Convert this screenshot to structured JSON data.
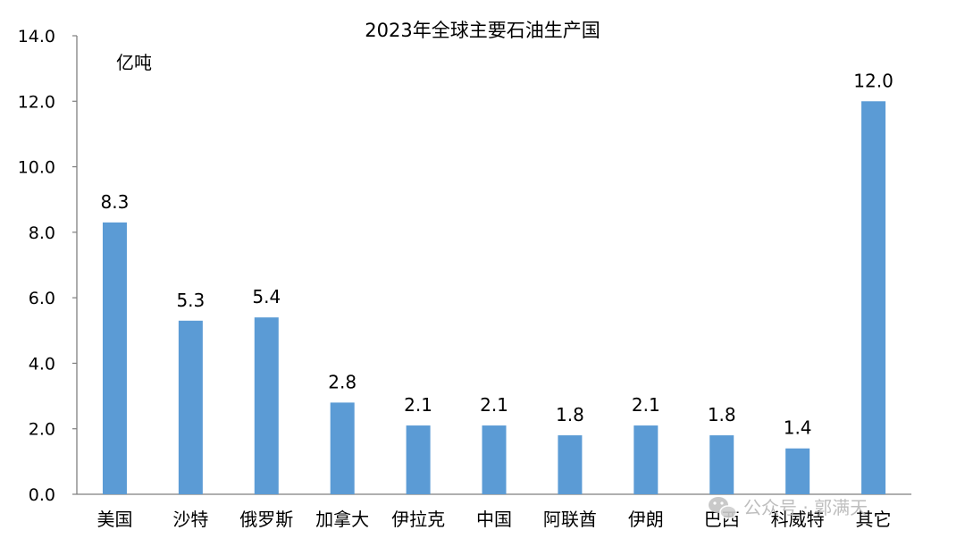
{
  "watermark": {
    "text": "公众号 · 郭满天",
    "icon": "wechat-icon"
  },
  "chart_data": {
    "type": "bar",
    "title": "2023年全球主要石油生产国",
    "unit_label": "亿吨",
    "xlabel": "",
    "ylabel": "",
    "ylim": [
      0,
      14
    ],
    "yticks": [
      "0.0",
      "2.0",
      "4.0",
      "6.0",
      "8.0",
      "10.0",
      "12.0",
      "14.0"
    ],
    "grid": false,
    "legend": "none",
    "bar_color": "#5b9bd5",
    "categories": [
      "美国",
      "沙特",
      "俄罗斯",
      "加拿大",
      "伊拉克",
      "中国",
      "阿联酋",
      "伊朗",
      "巴西",
      "科威特",
      "其它"
    ],
    "values": [
      8.3,
      5.3,
      5.4,
      2.8,
      2.1,
      2.1,
      1.8,
      2.1,
      1.8,
      1.4,
      12.0
    ],
    "data_labels": [
      "8.3",
      "5.3",
      "5.4",
      "2.8",
      "2.1",
      "2.1",
      "1.8",
      "2.1",
      "1.8",
      "1.4",
      "12.0"
    ]
  }
}
